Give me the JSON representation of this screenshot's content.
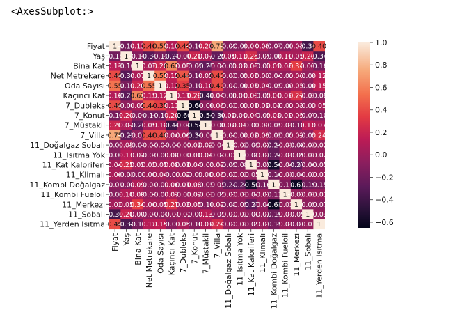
{
  "output_label": "<AxesSubplot:>",
  "chart_data": {
    "type": "heatmap",
    "title": "",
    "xlabel": "",
    "ylabel": "",
    "labels": [
      "Fiyat",
      "Yaş",
      "Bina Kat",
      "Net Metrekare",
      "Oda Sayısı",
      "Kaçıncı Kat",
      "7_Dubleks",
      "7_Konut",
      "7_Müstakil",
      "7_Villa",
      "11_Doğalgaz Sobalı",
      "11_Isıtma Yok",
      "11_Kat Kaloriferi",
      "11_Klimalı",
      "11_Kombi Doğalgaz",
      "11_Kombi Fueloil",
      "11_Merkezi",
      "11_Sobalı",
      "11_Yerden Isıtma"
    ],
    "values": [
      [
        1.0,
        -0.18,
        0.13,
        0.4,
        0.55,
        0.1,
        0.4,
        -0.16,
        0.2,
        0.75,
        -0.09,
        -0.09,
        0.04,
        0.06,
        -0.07,
        -0.09,
        0.03,
        -0.38,
        0.4
      ],
      [
        -0.18,
        1.0,
        -0.1,
        -0.3,
        -0.15,
        -0.28,
        -0.06,
        0.2,
        0.07,
        -0.25,
        0.05,
        0.13,
        0.25,
        -0.05,
        -0.08,
        0.1,
        0.05,
        0.2,
        -0.34
      ],
      [
        0.13,
        -0.1,
        1.0,
        0.07,
        0.2,
        0.62,
        0.05,
        -0.09,
        -0.25,
        -0.04,
        -0.07,
        0.02,
        0.05,
        -0.07,
        0.09,
        0.08,
        0.34,
        0.0,
        -0.16
      ],
      [
        0.4,
        -0.3,
        0.07,
        1.0,
        0.55,
        0.15,
        0.44,
        -0.16,
        0.05,
        0.4,
        -0.03,
        -0.05,
        0.05,
        0.0,
        -0.04,
        -0.03,
        0.06,
        -0.04,
        0.12
      ],
      [
        0.55,
        -0.15,
        0.2,
        0.55,
        1.0,
        0.12,
        0.35,
        -0.17,
        0.1,
        0.4,
        -0.04,
        -0.06,
        0.05,
        0.04,
        -0.05,
        -0.04,
        0.05,
        -0.06,
        0.15
      ],
      [
        0.1,
        -0.28,
        0.62,
        0.15,
        0.12,
        1.0,
        0.11,
        0.2,
        -0.4,
        0.04,
        -0.06,
        0.0,
        0.08,
        -0.05,
        0.06,
        0.07,
        0.27,
        -0.03,
        -0.08
      ],
      [
        0.4,
        -0.06,
        0.05,
        0.44,
        0.35,
        0.11,
        1.0,
        -0.6,
        -0.06,
        0.06,
        -0.03,
        -0.02,
        0.01,
        0.02,
        0.01,
        -0.02,
        0.03,
        -0.02,
        0.05
      ],
      [
        -0.16,
        0.2,
        -0.09,
        -0.16,
        -0.17,
        0.2,
        -0.6,
        1.0,
        -0.54,
        -0.36,
        0.02,
        0.0,
        0.04,
        -0.05,
        0.08,
        0.02,
        0.05,
        -0.07,
        -0.1
      ],
      [
        0.2,
        0.07,
        -0.25,
        0.05,
        0.1,
        -0.4,
        -0.06,
        -0.54,
        1.0,
        -0.06,
        0.02,
        0.04,
        -0.03,
        0.0,
        -0.05,
        -0.01,
        -0.1,
        0.13,
        0.07
      ],
      [
        0.75,
        -0.25,
        -0.04,
        0.4,
        0.4,
        0.04,
        0.06,
        -0.36,
        -0.06,
        1.0,
        -0.04,
        -0.04,
        0.02,
        0.06,
        -0.05,
        -0.05,
        0.02,
        -0.05,
        0.24
      ],
      [
        -0.09,
        0.05,
        -0.07,
        -0.03,
        -0.04,
        -0.06,
        -0.03,
        0.02,
        0.02,
        -0.04,
        1.0,
        -0.02,
        -0.09,
        -0.02,
        -0.24,
        -0.01,
        -0.08,
        -0.03,
        -0.02
      ],
      [
        -0.09,
        0.13,
        0.02,
        -0.05,
        -0.06,
        0.0,
        -0.02,
        0.0,
        0.04,
        -0.04,
        -0.02,
        1.0,
        -0.08,
        -0.02,
        -0.24,
        -0.01,
        -0.05,
        -0.02,
        -0.02
      ],
      [
        0.04,
        0.25,
        0.05,
        0.05,
        0.05,
        0.08,
        0.01,
        0.04,
        -0.03,
        0.02,
        -0.09,
        -0.08,
        1.0,
        -0.05,
        -0.56,
        -0.04,
        -0.27,
        -0.06,
        -0.05
      ],
      [
        0.06,
        -0.05,
        -0.07,
        0.0,
        0.04,
        -0.05,
        0.02,
        -0.05,
        0.0,
        0.06,
        -0.02,
        -0.02,
        -0.05,
        1.0,
        -0.16,
        -0.01,
        -0.04,
        -0.02,
        -0.01
      ],
      [
        -0.07,
        -0.08,
        0.09,
        -0.04,
        -0.05,
        0.06,
        0.01,
        0.08,
        -0.05,
        -0.05,
        -0.24,
        -0.24,
        -0.56,
        -0.16,
        1.0,
        -0.11,
        -0.61,
        -0.19,
        -0.15
      ],
      [
        -0.09,
        0.1,
        0.08,
        -0.03,
        -0.04,
        0.07,
        -0.02,
        0.02,
        -0.01,
        -0.05,
        -0.01,
        -0.01,
        -0.04,
        -0.01,
        -0.11,
        1.0,
        -0.03,
        -0.01,
        -0.01
      ],
      [
        0.03,
        0.05,
        0.34,
        0.06,
        0.05,
        0.27,
        0.03,
        0.05,
        -0.1,
        0.02,
        -0.08,
        -0.05,
        -0.27,
        -0.04,
        -0.61,
        -0.03,
        1.0,
        -0.05,
        -0.07
      ],
      [
        -0.38,
        0.2,
        0.0,
        -0.04,
        -0.06,
        -0.03,
        -0.02,
        -0.07,
        0.13,
        -0.05,
        -0.03,
        -0.02,
        -0.06,
        -0.02,
        -0.19,
        -0.01,
        -0.05,
        1.0,
        -0.03
      ],
      [
        0.4,
        -0.34,
        -0.16,
        0.12,
        0.15,
        -0.08,
        0.05,
        -0.1,
        0.07,
        0.24,
        -0.02,
        -0.02,
        -0.05,
        -0.01,
        -0.15,
        -0.01,
        -0.07,
        -0.03,
        1.0
      ]
    ],
    "vmin": -0.65,
    "vmax": 1.0,
    "annot": true,
    "colormap": "rocket",
    "colorbar_ticks": [
      1.0,
      0.8,
      0.6,
      0.4,
      0.2,
      0.0,
      -0.2,
      -0.4,
      -0.6
    ],
    "colorbar_tick_labels": [
      "1.0",
      "0.8",
      "0.6",
      "0.4",
      "0.2",
      "0.0",
      "−0.2",
      "−0.4",
      "−0.6"
    ],
    "colorbar_position": "right"
  }
}
